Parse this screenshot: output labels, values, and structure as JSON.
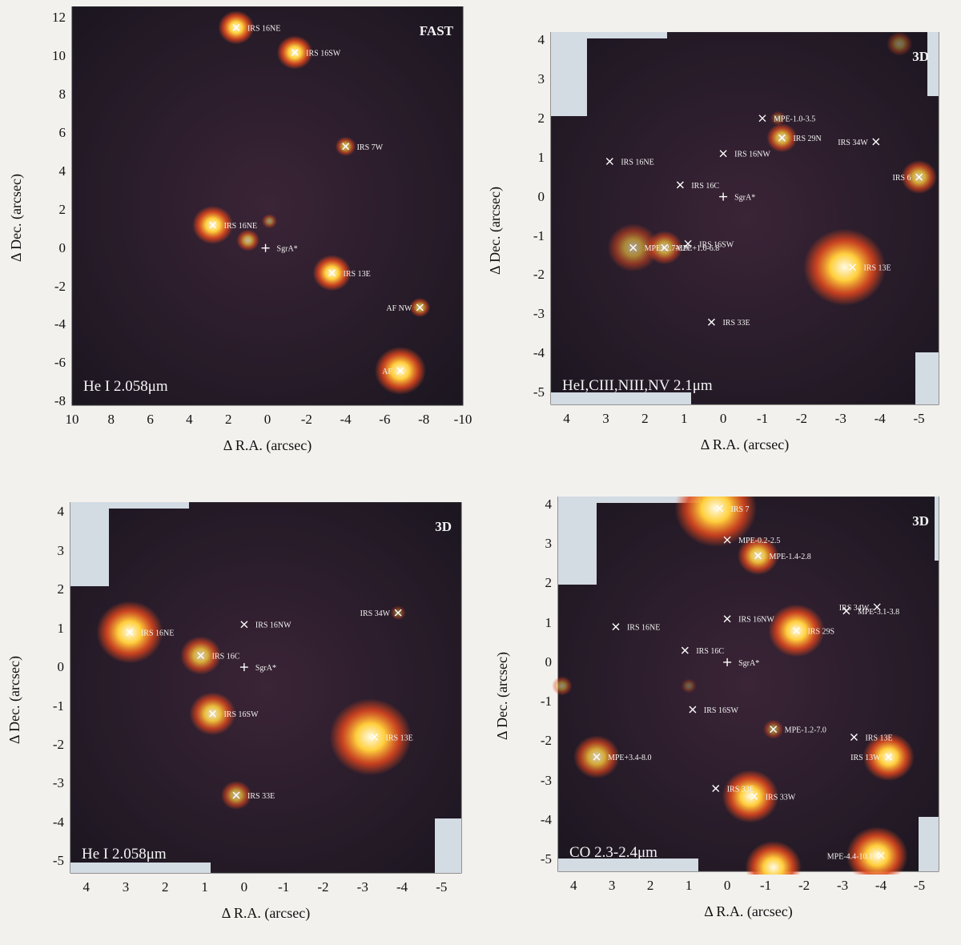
{
  "panels": [
    {
      "id": "p1",
      "mode_label": "FAST",
      "line_label": "He I 2.058μm",
      "xlabel": "Δ R.A. (arcsec)",
      "ylabel": "Δ Dec. (arcsec)",
      "xticks": [
        "10",
        "8",
        "6",
        "4",
        "2",
        "0",
        "-2",
        "-4",
        "-6",
        "-8",
        "-10"
      ],
      "yticks": [
        "12",
        "10",
        "8",
        "6",
        "4",
        "2",
        "0",
        "-2",
        "-4",
        "-6",
        "-8"
      ],
      "sources": [
        {
          "label": "IRS 16NE",
          "x": 1.6,
          "y": 11.5
        },
        {
          "label": "IRS 16SW",
          "x": -1.4,
          "y": 10.2
        },
        {
          "label": "IRS 7W",
          "x": -4.0,
          "y": 5.3
        },
        {
          "label": "IRS 16NE",
          "x": 2.8,
          "y": 1.2
        },
        {
          "label": "SgrA*",
          "x": 0.1,
          "y": 0.0
        },
        {
          "label": "IRS 13E",
          "x": -3.3,
          "y": -1.3
        },
        {
          "label": "AF NW",
          "x": -7.8,
          "y": -3.1
        },
        {
          "label": "AF",
          "x": -6.8,
          "y": -6.4
        }
      ]
    },
    {
      "id": "p2",
      "mode_label": "3D",
      "line_label": "HeI,CIII,NIII,NV 2.1μm",
      "xlabel": "Δ R.A. (arcsec)",
      "ylabel": "Δ Dec. (arcsec)",
      "xticks": [
        "4",
        "3",
        "2",
        "1",
        "0",
        "-1",
        "-2",
        "-3",
        "-4",
        "-5"
      ],
      "yticks": [
        "4",
        "3",
        "2",
        "1",
        "0",
        "-1",
        "-2",
        "-3",
        "-4",
        "-5"
      ],
      "sources": [
        {
          "label": "MPE-1.0-3.5",
          "x": -1.0,
          "y": 2.0
        },
        {
          "label": "IRS 29N",
          "x": -1.5,
          "y": 1.5
        },
        {
          "label": "IRS 34W",
          "x": -3.9,
          "y": 1.4
        },
        {
          "label": "IRS 16NW",
          "x": 0.0,
          "y": 1.1
        },
        {
          "label": "IRS 16NE",
          "x": 2.9,
          "y": 0.9
        },
        {
          "label": "IRS 16C",
          "x": 1.1,
          "y": 0.3
        },
        {
          "label": "SgrA*",
          "x": 0.0,
          "y": 0.0
        },
        {
          "label": "IRS 6",
          "x": -5.0,
          "y": 0.5
        },
        {
          "label": "MPE+2.7-6.9",
          "x": 2.3,
          "y": -1.3
        },
        {
          "label": "MPE+1.6-6.8",
          "x": 1.5,
          "y": -1.3
        },
        {
          "label": "IRS 16SW",
          "x": 0.9,
          "y": -1.2
        },
        {
          "label": "IRS 13E",
          "x": -3.3,
          "y": -1.8
        },
        {
          "label": "IRS 33E",
          "x": 0.3,
          "y": -3.2
        }
      ]
    },
    {
      "id": "p3",
      "mode_label": "3D",
      "line_label": "He I 2.058μm",
      "xlabel": "Δ R.A. (arcsec)",
      "ylabel": "Δ Dec. (arcsec)",
      "xticks": [
        "4",
        "3",
        "2",
        "1",
        "0",
        "-1",
        "-2",
        "-3",
        "-4",
        "-5"
      ],
      "yticks": [
        "4",
        "3",
        "2",
        "1",
        "0",
        "-1",
        "-2",
        "-3",
        "-4",
        "-5"
      ],
      "sources": [
        {
          "label": "IRS 34W",
          "x": -3.9,
          "y": 1.4
        },
        {
          "label": "IRS 16NW",
          "x": 0.0,
          "y": 1.1
        },
        {
          "label": "IRS 16NE",
          "x": 2.9,
          "y": 0.9
        },
        {
          "label": "IRS 16C",
          "x": 1.1,
          "y": 0.3
        },
        {
          "label": "SgrA*",
          "x": 0.0,
          "y": 0.0
        },
        {
          "label": "IRS 16SW",
          "x": 0.8,
          "y": -1.2
        },
        {
          "label": "IRS 13E",
          "x": -3.3,
          "y": -1.8
        },
        {
          "label": "IRS 33E",
          "x": 0.2,
          "y": -3.3
        }
      ]
    },
    {
      "id": "p4",
      "mode_label": "3D",
      "line_label": "CO 2.3-2.4μm",
      "xlabel": "Δ R.A. (arcsec)",
      "ylabel": "Δ Dec. (arcsec)",
      "xticks": [
        "4",
        "3",
        "2",
        "1",
        "0",
        "-1",
        "-2",
        "-3",
        "-4",
        "-5"
      ],
      "yticks": [
        "4",
        "3",
        "2",
        "1",
        "0",
        "-1",
        "-2",
        "-3",
        "-4",
        "-5"
      ],
      "sources": [
        {
          "label": "IRS 7",
          "x": 0.2,
          "y": 3.9
        },
        {
          "label": "MPE-0.2-2.5",
          "x": 0.0,
          "y": 3.1
        },
        {
          "label": "MPE-1.4-2.8",
          "x": -0.8,
          "y": 2.7
        },
        {
          "label": "IRS 34W",
          "x": -3.9,
          "y": 1.4
        },
        {
          "label": "MPE-3.1-3.8",
          "x": -3.1,
          "y": 1.3
        },
        {
          "label": "IRS 16NW",
          "x": 0.0,
          "y": 1.1
        },
        {
          "label": "IRS 16NE",
          "x": 2.9,
          "y": 0.9
        },
        {
          "label": "IRS 29S",
          "x": -1.8,
          "y": 0.8
        },
        {
          "label": "IRS 16C",
          "x": 1.1,
          "y": 0.3
        },
        {
          "label": "SgrA*",
          "x": 0.0,
          "y": 0.0
        },
        {
          "label": "IRS 16SW",
          "x": 0.9,
          "y": -1.2
        },
        {
          "label": "MPE-1.2-7.0",
          "x": -1.2,
          "y": -1.7
        },
        {
          "label": "IRS 13E",
          "x": -3.3,
          "y": -1.9
        },
        {
          "label": "MPE+3.4-8.0",
          "x": 3.4,
          "y": -2.4
        },
        {
          "label": "IRS 13W",
          "x": -4.2,
          "y": -2.4
        },
        {
          "label": "IRS 33E",
          "x": 0.3,
          "y": -3.2
        },
        {
          "label": "IRS 33W",
          "x": -0.7,
          "y": -3.4
        },
        {
          "label": "MPE-4.4-10.1",
          "x": -4.0,
          "y": -4.9
        }
      ]
    }
  ],
  "colors": {
    "background": "#1b1620",
    "glow_core": "#fffbe6",
    "glow_mid": "#ffcf3c",
    "glow_edge": "#e0461e",
    "mask": "#d3dbe3"
  }
}
